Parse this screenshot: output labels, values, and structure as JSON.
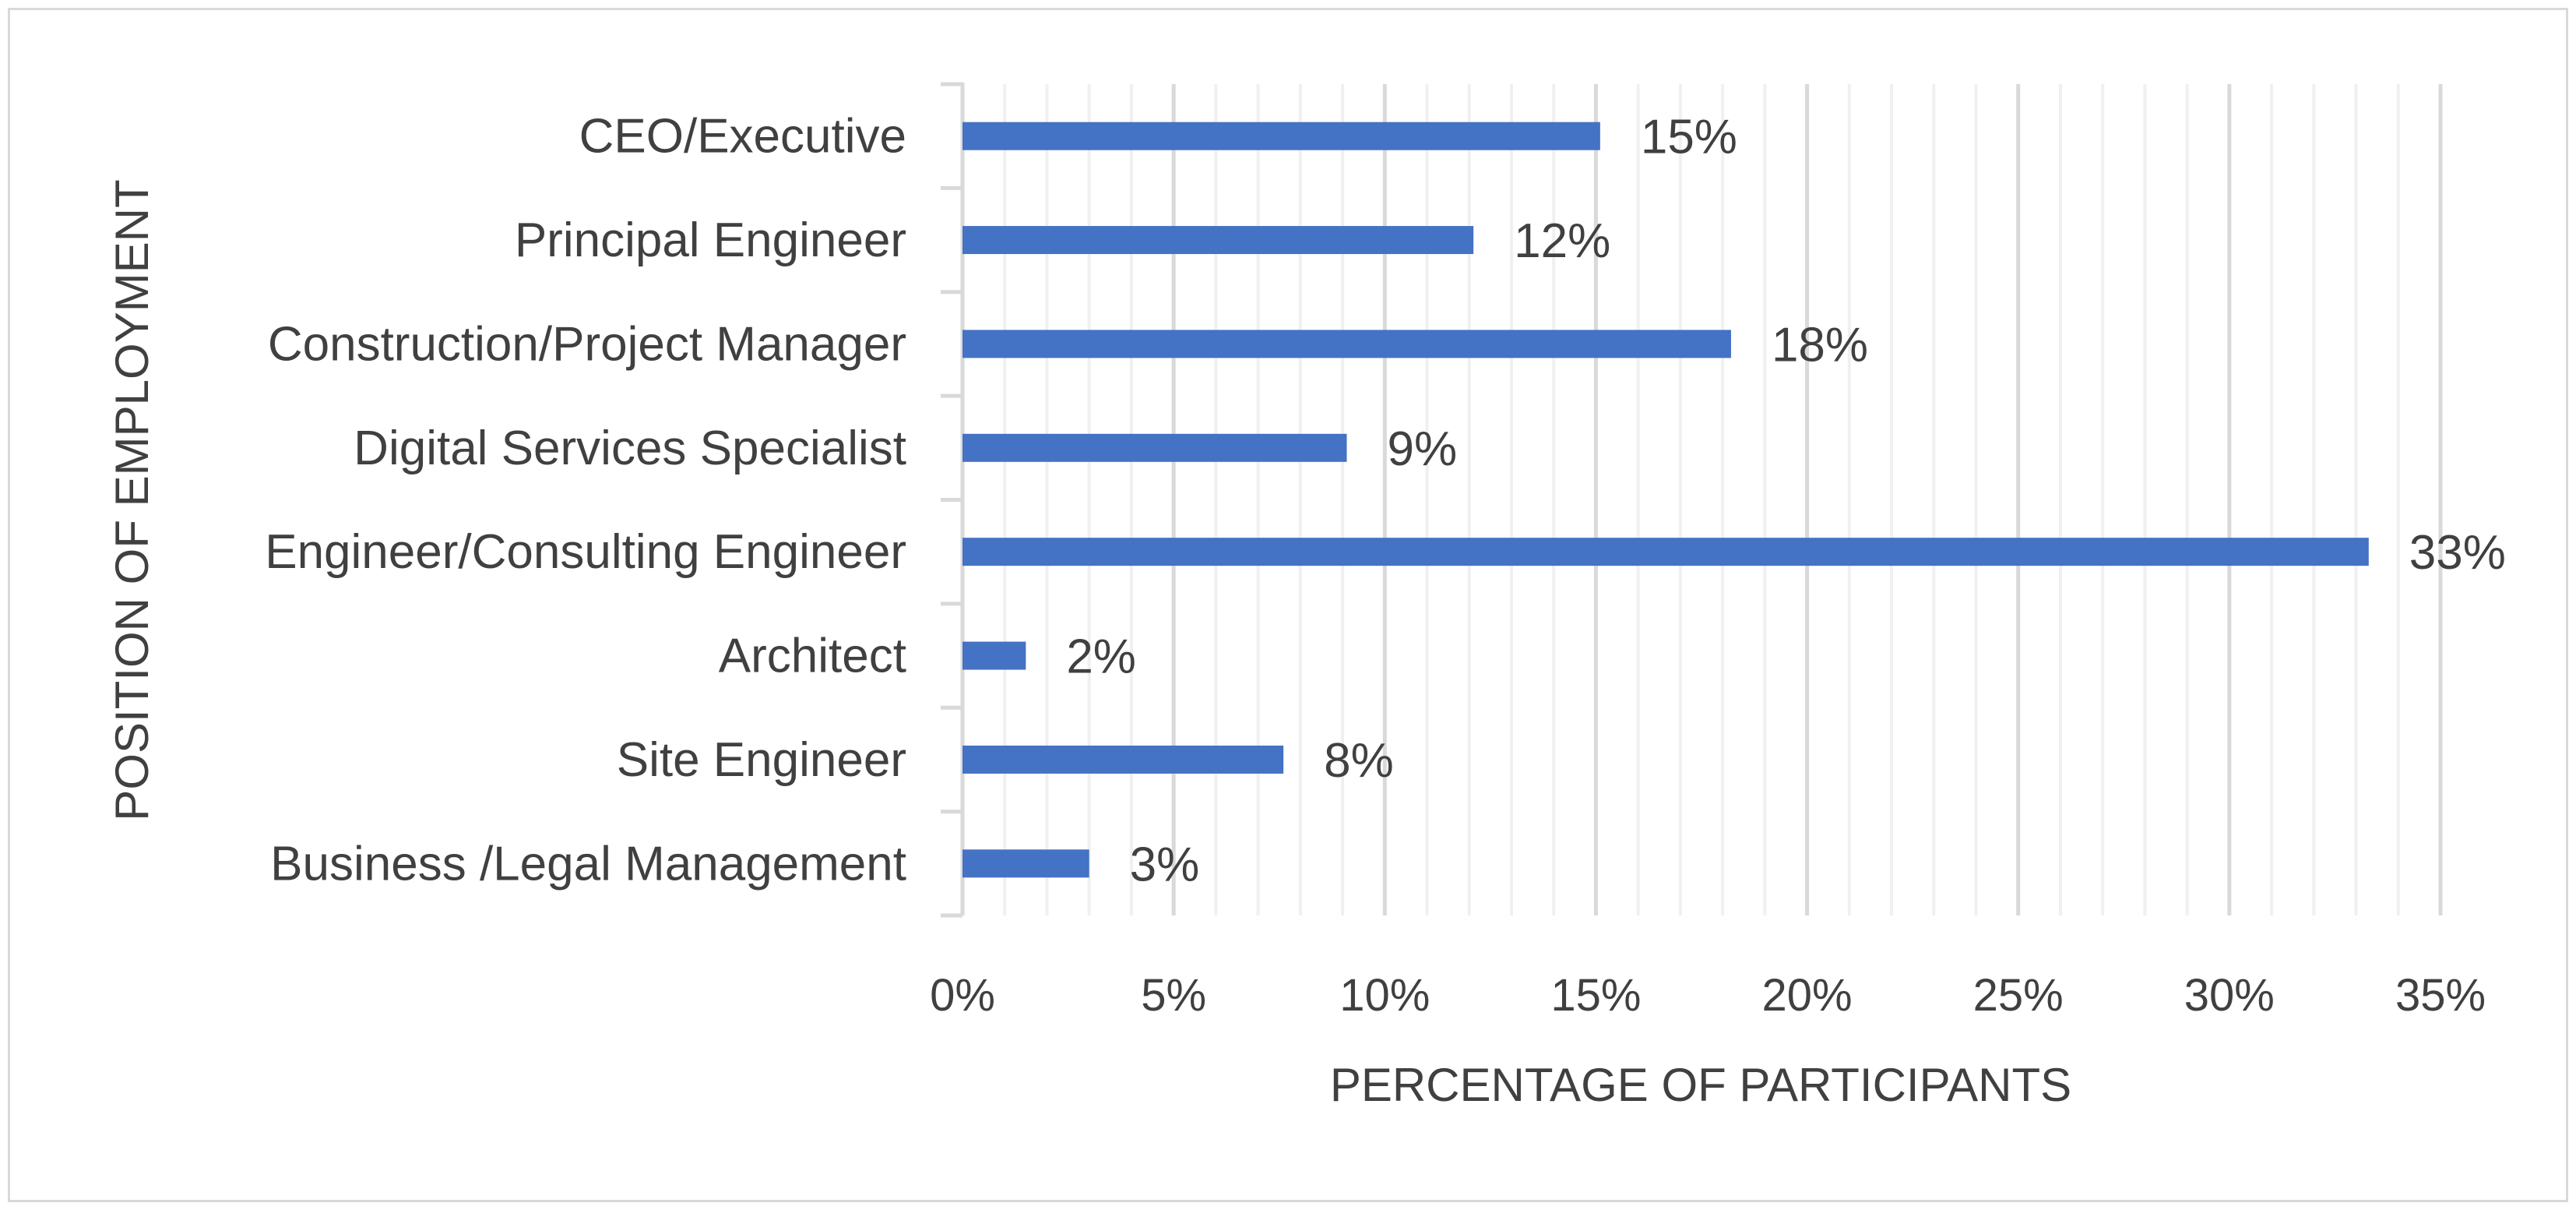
{
  "chart_data": {
    "type": "bar",
    "orientation": "horizontal",
    "title": "",
    "xlabel": "PERCENTAGE OF PARTICIPANTS",
    "ylabel": "POSITION OF EMPLOYMENT",
    "categories": [
      "CEO/Executive",
      "Principal Engineer",
      "Construction/Project Manager",
      "Digital Services Specialist",
      "Engineer/Consulting Engineer",
      "Architect",
      "Site Engineer",
      "Business /Legal Management"
    ],
    "values": [
      15.1,
      12.1,
      18.2,
      9.1,
      33.3,
      1.5,
      7.6,
      3.0
    ],
    "data_labels": [
      "15%",
      "12%",
      "18%",
      "9%",
      "33%",
      "2%",
      "8%",
      "3%"
    ],
    "xlim": [
      0,
      35
    ],
    "x_ticks": [
      0,
      5,
      10,
      15,
      20,
      25,
      30,
      35
    ],
    "x_tick_labels": [
      "0%",
      "5%",
      "10%",
      "15%",
      "20%",
      "25%",
      "30%",
      "35%"
    ],
    "major_gridlines": true,
    "minor_gridlines": true,
    "legend": "none",
    "colors": {
      "bar": "#4472c4",
      "major_grid": "#d9d9d9",
      "minor_grid": "#f0f0f0",
      "axis": "#d9d9d9",
      "text": "#404040",
      "frame": "#d9d9d9"
    }
  }
}
